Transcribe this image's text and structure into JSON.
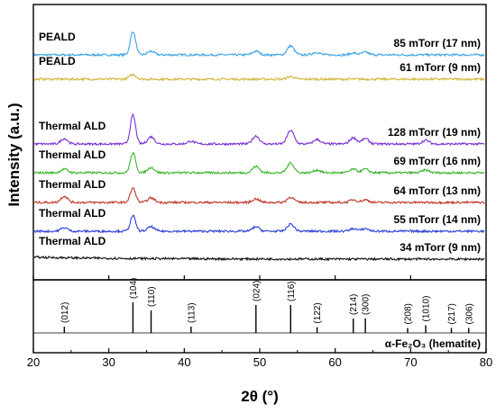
{
  "chart_data": {
    "type": "line",
    "xlabel": "2θ (°)",
    "ylabel": "Intensity (a.u.)",
    "xlim": [
      20,
      80
    ],
    "xticks": [
      20,
      30,
      40,
      50,
      60,
      70,
      80
    ],
    "series": [
      {
        "method": "PEALD",
        "label": "85 mTorr (17 nm)",
        "color": "#3ba4e6",
        "peak_scale": 1.0,
        "peaks": [
          {
            "x": 33.2,
            "h": 26
          },
          {
            "x": 35.6,
            "h": 4
          },
          {
            "x": 49.5,
            "h": 4
          },
          {
            "x": 54.1,
            "h": 10
          },
          {
            "x": 57.5,
            "h": 3
          },
          {
            "x": 62.4,
            "h": 2
          },
          {
            "x": 64.0,
            "h": 3
          }
        ]
      },
      {
        "method": "PEALD",
        "label": "61 mTorr (9 nm)",
        "color": "#d4b43a",
        "peak_scale": 1.0,
        "peaks": [
          {
            "x": 33.2,
            "h": 5
          },
          {
            "x": 54.1,
            "h": 3
          }
        ]
      },
      {
        "method": "Thermal ALD",
        "label": "128 mTorr (19 nm)",
        "color": "#7b2fd6",
        "peak_scale": 1.0,
        "peaks": [
          {
            "x": 24.1,
            "h": 6
          },
          {
            "x": 33.2,
            "h": 32
          },
          {
            "x": 35.6,
            "h": 8
          },
          {
            "x": 40.9,
            "h": 3
          },
          {
            "x": 49.5,
            "h": 9
          },
          {
            "x": 54.1,
            "h": 15
          },
          {
            "x": 57.6,
            "h": 5
          },
          {
            "x": 62.4,
            "h": 7
          },
          {
            "x": 64.0,
            "h": 6
          },
          {
            "x": 72.0,
            "h": 4
          }
        ]
      },
      {
        "method": "Thermal ALD",
        "label": "69 mTorr (16 nm)",
        "color": "#3cb52e",
        "peak_scale": 1.0,
        "peaks": [
          {
            "x": 24.1,
            "h": 4
          },
          {
            "x": 33.2,
            "h": 22
          },
          {
            "x": 35.6,
            "h": 6
          },
          {
            "x": 49.5,
            "h": 7
          },
          {
            "x": 54.1,
            "h": 11
          },
          {
            "x": 57.6,
            "h": 3
          },
          {
            "x": 62.4,
            "h": 4
          },
          {
            "x": 64.0,
            "h": 4
          },
          {
            "x": 72.0,
            "h": 3
          }
        ]
      },
      {
        "method": "Thermal ALD",
        "label": "64 mTorr (13 nm)",
        "color": "#c0392b",
        "peak_scale": 1.0,
        "peaks": [
          {
            "x": 24.1,
            "h": 7
          },
          {
            "x": 33.2,
            "h": 16
          },
          {
            "x": 35.6,
            "h": 5
          },
          {
            "x": 49.5,
            "h": 4
          },
          {
            "x": 54.1,
            "h": 6
          },
          {
            "x": 62.4,
            "h": 3
          },
          {
            "x": 64.0,
            "h": 3
          }
        ]
      },
      {
        "method": "Thermal ALD",
        "label": "55 mTorr (14 nm)",
        "color": "#2b3fd6",
        "peak_scale": 1.0,
        "peaks": [
          {
            "x": 24.1,
            "h": 4
          },
          {
            "x": 33.2,
            "h": 17
          },
          {
            "x": 35.6,
            "h": 5
          },
          {
            "x": 49.5,
            "h": 5
          },
          {
            "x": 54.1,
            "h": 8
          },
          {
            "x": 62.4,
            "h": 3
          },
          {
            "x": 64.0,
            "h": 3
          }
        ]
      },
      {
        "method": "Thermal ALD",
        "label": "34 mTorr (9 nm)",
        "color": "#111111",
        "peak_scale": 1.0,
        "peaks": []
      }
    ],
    "reference": {
      "label": "α-Fe₂O₃ (hematite)",
      "peaks": [
        {
          "x": 24.1,
          "hkl": "(012)",
          "i": 0.1
        },
        {
          "x": 33.2,
          "hkl": "(104)",
          "i": 1.0
        },
        {
          "x": 35.6,
          "hkl": "(110)",
          "i": 0.7
        },
        {
          "x": 40.9,
          "hkl": "(113)",
          "i": 0.1
        },
        {
          "x": 49.5,
          "hkl": "(024)",
          "i": 0.9
        },
        {
          "x": 54.1,
          "hkl": "(116)",
          "i": 0.9
        },
        {
          "x": 57.6,
          "hkl": "(122)",
          "i": 0.08
        },
        {
          "x": 62.4,
          "hkl": "(214)",
          "i": 0.4
        },
        {
          "x": 64.0,
          "hkl": "(300)",
          "i": 0.4
        },
        {
          "x": 69.6,
          "hkl": "(208)",
          "i": 0.05
        },
        {
          "x": 72.0,
          "hkl": "(1010)",
          "i": 0.15
        },
        {
          "x": 75.4,
          "hkl": "(217)",
          "i": 0.05
        },
        {
          "x": 77.7,
          "hkl": "(306)",
          "i": 0.05
        }
      ]
    }
  }
}
